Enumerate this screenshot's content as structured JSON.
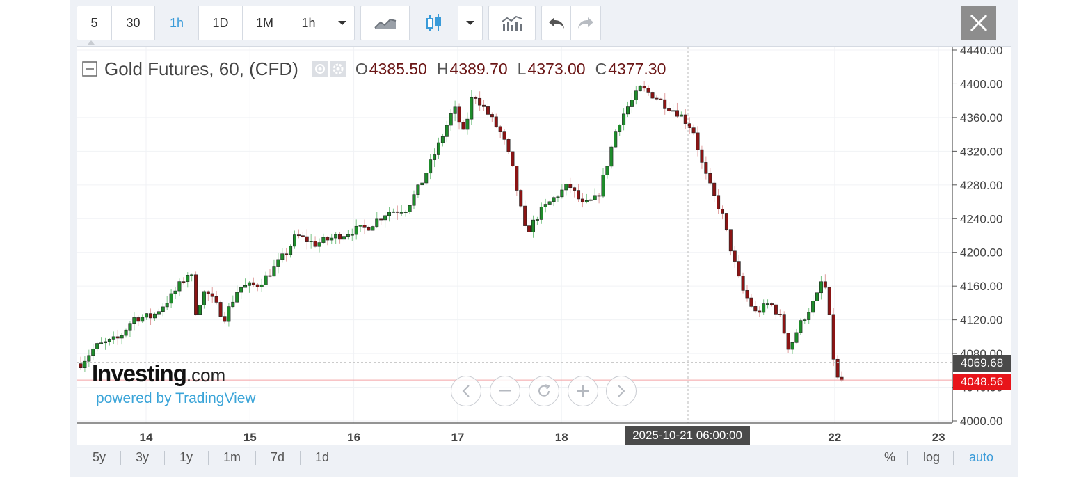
{
  "toolbar": {
    "intervals": [
      "5",
      "30",
      "1h",
      "1D",
      "1M",
      "1h"
    ],
    "active_interval": "1h",
    "icons": [
      "caret-down-icon",
      "line-chart-icon",
      "candlestick-icon",
      "caret-down-icon",
      "indicators-icon",
      "undo-icon",
      "redo-icon",
      "close-icon"
    ]
  },
  "legend": {
    "title": "Gold Futures, 60, (CFD)",
    "o_label": "O",
    "o_value": "4385.50",
    "h_label": "H",
    "h_value": "4389.70",
    "l_label": "L",
    "l_value": "4373.00",
    "c_label": "C",
    "c_value": "4377.30"
  },
  "watermark": {
    "logo_main": "Investing",
    "logo_suffix": ".com",
    "powered": "powered by TradingView"
  },
  "price_labels": {
    "crosshair_price": "4069.68",
    "last_price": "4048.56"
  },
  "time_label": "2025-10-21 06:00:00",
  "ranges": [
    "5y",
    "3y",
    "1y",
    "1m",
    "7d",
    "1d"
  ],
  "scale_buttons": [
    "%",
    "log",
    "auto"
  ],
  "active_scale": "auto",
  "colors": {
    "up": "#1e8c2b",
    "down": "#8b1414",
    "accent": "#3a9bd9",
    "last_price": "#e8141a",
    "crosshair_price": "#4a4a4a"
  },
  "chart_data": {
    "type": "candlestick",
    "title": "Gold Futures, 60, (CFD)",
    "x_ticks": [
      "14",
      "15",
      "16",
      "17",
      "18",
      "22",
      "23"
    ],
    "y_ticks": [
      "4000.00",
      "4040.00",
      "4080.00",
      "4120.00",
      "4160.00",
      "4200.00",
      "4240.00",
      "4280.00",
      "4320.00",
      "4360.00",
      "4400.00",
      "4440.00"
    ],
    "ylim": [
      4000,
      4440
    ],
    "grid": true,
    "close_path": [
      [
        13.35,
        4068
      ],
      [
        13.5,
        4088
      ],
      [
        13.75,
        4098
      ],
      [
        13.9,
        4122
      ],
      [
        14.1,
        4124
      ],
      [
        14.3,
        4148
      ],
      [
        14.5,
        4180
      ],
      [
        14.55,
        4130
      ],
      [
        14.65,
        4155
      ],
      [
        14.75,
        4140
      ],
      [
        14.85,
        4122
      ],
      [
        15.0,
        4158
      ],
      [
        15.2,
        4162
      ],
      [
        15.3,
        4172
      ],
      [
        15.5,
        4200
      ],
      [
        15.6,
        4220
      ],
      [
        15.8,
        4210
      ],
      [
        16.0,
        4218
      ],
      [
        16.2,
        4226
      ],
      [
        16.35,
        4230
      ],
      [
        16.55,
        4248
      ],
      [
        16.75,
        4252
      ],
      [
        16.9,
        4280
      ],
      [
        17.1,
        4330
      ],
      [
        17.25,
        4372
      ],
      [
        17.35,
        4340
      ],
      [
        17.45,
        4390
      ],
      [
        17.6,
        4365
      ],
      [
        17.75,
        4340
      ],
      [
        17.85,
        4305
      ],
      [
        17.95,
        4250
      ],
      [
        18.0,
        4222
      ],
      [
        18.15,
        4248
      ],
      [
        18.3,
        4265
      ],
      [
        18.45,
        4280
      ],
      [
        18.6,
        4255
      ],
      [
        18.75,
        4265
      ],
      [
        18.85,
        4305
      ],
      [
        18.95,
        4350
      ],
      [
        19.05,
        4370
      ],
      [
        19.2,
        4395
      ],
      [
        19.35,
        4385
      ],
      [
        19.5,
        4372
      ],
      [
        19.6,
        4365
      ],
      [
        19.75,
        4345
      ],
      [
        19.85,
        4300
      ],
      [
        19.95,
        4270
      ],
      [
        20.05,
        4245
      ],
      [
        20.15,
        4200
      ],
      [
        20.25,
        4158
      ],
      [
        20.4,
        4128
      ],
      [
        20.55,
        4140
      ],
      [
        20.65,
        4125
      ],
      [
        20.75,
        4085
      ],
      [
        20.85,
        4112
      ],
      [
        21.0,
        4140
      ],
      [
        21.05,
        4150
      ],
      [
        21.1,
        4170
      ],
      [
        21.15,
        4148
      ],
      [
        21.2,
        4085
      ],
      [
        21.25,
        4050
      ],
      [
        21.3,
        4048
      ]
    ],
    "last_value": 4048.56,
    "crosshair_value": 4069.68
  }
}
